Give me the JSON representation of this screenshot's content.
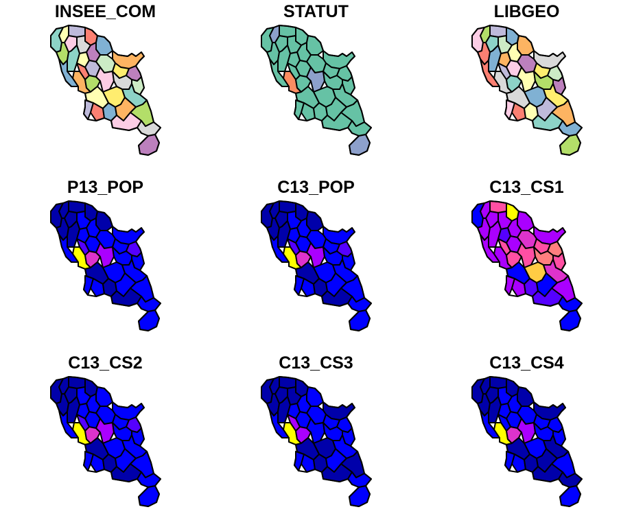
{
  "panels": [
    {
      "title": "INSEE_COM"
    },
    {
      "title": "STATUT"
    },
    {
      "title": "LIBGEO"
    },
    {
      "title": "P13_POP"
    },
    {
      "title": "C13_POP"
    },
    {
      "title": "C13_CS1"
    },
    {
      "title": "C13_CS2"
    },
    {
      "title": "C13_CS3"
    },
    {
      "title": "C13_CS4"
    }
  ],
  "palettes": {
    "qualitative": [
      "#8dd3c7",
      "#ffffb3",
      "#bebada",
      "#fb8072",
      "#80b1d3",
      "#fdb462",
      "#b3de69",
      "#fccde5",
      "#d9d9d9",
      "#bc80bd",
      "#ccebc5",
      "#ffed6f"
    ],
    "statut": [
      "#66c2a5",
      "#8da0cb",
      "#fc8d62"
    ],
    "sequential": [
      "#0000aa",
      "#0000ff",
      "#5500ff",
      "#aa00ff",
      "#dd33cc",
      "#ff4fa3",
      "#ff7f7f",
      "#ffcc44",
      "#ffff00"
    ]
  },
  "map_colors": [
    {
      "type": "qualitative",
      "codes": [
        0,
        1,
        2,
        3,
        4,
        5,
        6,
        7,
        8,
        9,
        10,
        11,
        0,
        1,
        2,
        3,
        4,
        5,
        6,
        7,
        8,
        9,
        10,
        11,
        0,
        1,
        2,
        3,
        4,
        5,
        6,
        7,
        8,
        9
      ]
    },
    {
      "type": "statut",
      "codes": [
        0,
        1,
        0,
        0,
        0,
        0,
        0,
        0,
        0,
        0,
        0,
        0,
        0,
        0,
        0,
        0,
        0,
        2,
        0,
        1,
        0,
        0,
        0,
        0,
        0,
        0,
        0,
        0,
        0,
        0,
        0,
        0,
        0,
        1
      ]
    },
    {
      "type": "qualitative",
      "codes": [
        7,
        6,
        2,
        4,
        5,
        8,
        3,
        0,
        10,
        1,
        9,
        11,
        4,
        5,
        7,
        2,
        3,
        8,
        0,
        1,
        6,
        10,
        9,
        4,
        11,
        8,
        7,
        3,
        1,
        2,
        5,
        0,
        4,
        6
      ]
    },
    {
      "type": "sequential",
      "codes": [
        0,
        0,
        0,
        0,
        0,
        1,
        0,
        0,
        1,
        1,
        1,
        1,
        0,
        1,
        1,
        2,
        1,
        8,
        4,
        3,
        1,
        2,
        1,
        1,
        1,
        0,
        1,
        1,
        0,
        1,
        1,
        0,
        1,
        1
      ]
    },
    {
      "type": "sequential",
      "codes": [
        0,
        0,
        0,
        0,
        0,
        1,
        0,
        0,
        1,
        1,
        1,
        1,
        0,
        1,
        1,
        2,
        1,
        8,
        4,
        3,
        1,
        2,
        1,
        1,
        1,
        0,
        1,
        1,
        0,
        1,
        1,
        0,
        1,
        1
      ]
    },
    {
      "type": "sequential",
      "codes": [
        1,
        3,
        5,
        8,
        3,
        3,
        3,
        3,
        3,
        3,
        4,
        5,
        3,
        2,
        3,
        5,
        3,
        3,
        5,
        5,
        6,
        6,
        5,
        7,
        4,
        1,
        3,
        3,
        2,
        1,
        3,
        2,
        1,
        1
      ]
    },
    {
      "type": "sequential",
      "codes": [
        0,
        0,
        0,
        0,
        1,
        1,
        0,
        0,
        1,
        1,
        1,
        1,
        0,
        1,
        1,
        2,
        1,
        8,
        4,
        3,
        1,
        2,
        1,
        1,
        1,
        0,
        1,
        1,
        0,
        1,
        1,
        0,
        1,
        1
      ]
    },
    {
      "type": "sequential",
      "codes": [
        0,
        0,
        0,
        0,
        1,
        0,
        0,
        0,
        0,
        1,
        1,
        1,
        0,
        1,
        1,
        3,
        1,
        8,
        3,
        1,
        1,
        1,
        1,
        0,
        1,
        0,
        1,
        1,
        0,
        1,
        0,
        0,
        1,
        1
      ]
    },
    {
      "type": "sequential",
      "codes": [
        0,
        0,
        0,
        0,
        0,
        0,
        0,
        0,
        1,
        1,
        1,
        1,
        0,
        1,
        1,
        1,
        1,
        8,
        4,
        3,
        1,
        1,
        1,
        1,
        0,
        0,
        1,
        1,
        0,
        0,
        1,
        0,
        0,
        1
      ]
    }
  ]
}
